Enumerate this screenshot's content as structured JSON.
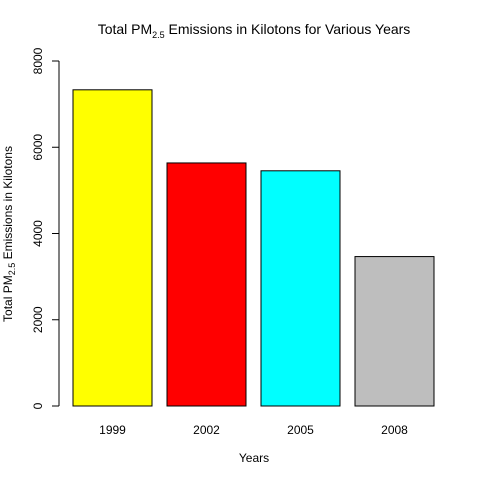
{
  "chart_data": {
    "type": "bar",
    "title": {
      "pre": "Total PM",
      "sub": "2.5",
      "post": " Emissions in Kilotons for Various Years"
    },
    "xlabel": "Years",
    "ylabel": {
      "pre": "Total PM",
      "sub": "2.5",
      "post": " Emissions in Kilotons"
    },
    "categories": [
      "1999",
      "2002",
      "2005",
      "2008"
    ],
    "values": [
      7332,
      5636,
      5454,
      3465
    ],
    "colors": [
      "#ffff00",
      "#ff0000",
      "#00ffff",
      "#bebebe"
    ],
    "ylim": [
      0,
      8000
    ],
    "yticks": [
      "0",
      "2000",
      "4000",
      "6000",
      "8000"
    ],
    "grid": false,
    "legend": "none"
  }
}
